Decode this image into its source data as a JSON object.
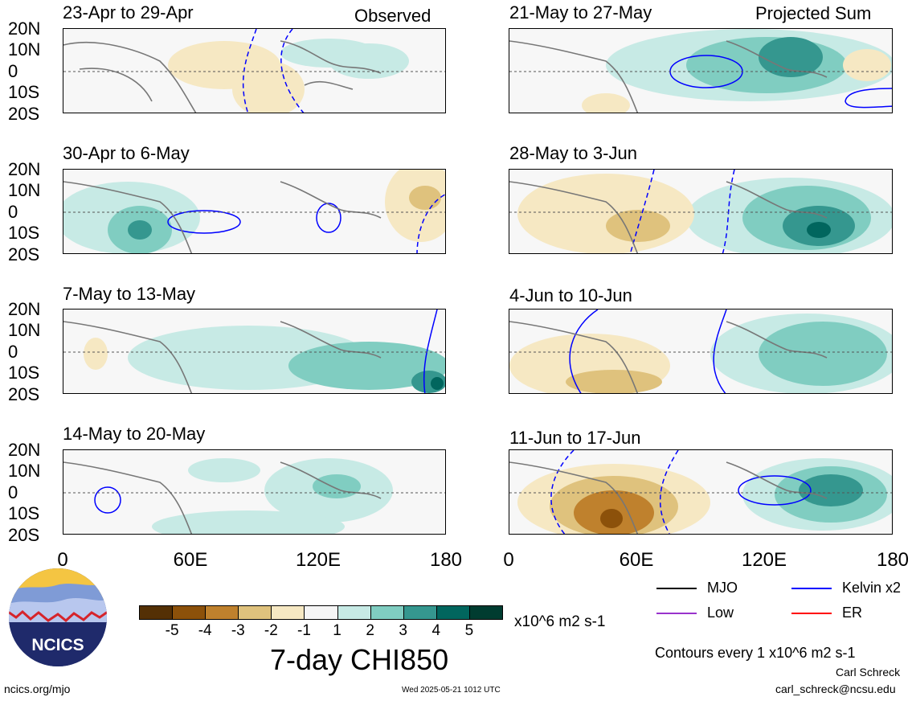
{
  "header": {
    "observed_label": "Observed",
    "projected_label": "Projected Sum"
  },
  "panels": {
    "left": [
      {
        "title": "23-Apr to 29-Apr"
      },
      {
        "title": "30-Apr to 6-May"
      },
      {
        "title": "7-May to 13-May"
      },
      {
        "title": "14-May to 20-May"
      }
    ],
    "right": [
      {
        "title": "21-May to 27-May"
      },
      {
        "title": "28-May to 3-Jun"
      },
      {
        "title": "4-Jun to 10-Jun"
      },
      {
        "title": "11-Jun to 17-Jun"
      }
    ]
  },
  "lat_labels": [
    "20N",
    "10N",
    "0",
    "10S",
    "20S"
  ],
  "lon_labels": [
    "0",
    "60E",
    "120E",
    "180"
  ],
  "colorbar": {
    "ticks": [
      "-5",
      "-4",
      "-3",
      "-2",
      "-1",
      "1",
      "2",
      "3",
      "4",
      "5"
    ],
    "colors": [
      "#543005",
      "#8c510a",
      "#bf812d",
      "#dfc27d",
      "#f6e8c3",
      "#f5f5f5",
      "#c7eae5",
      "#80cdc1",
      "#35978f",
      "#01665e",
      "#003c30"
    ],
    "units": "x10^6 m2 s-1",
    "title": "7-day CHI850"
  },
  "legend": {
    "items": [
      {
        "label": "MJO",
        "color": "#000000"
      },
      {
        "label": "Kelvin x2",
        "color": "#0000ff"
      },
      {
        "label": "Low",
        "color": "#9933cc"
      },
      {
        "label": "ER",
        "color": "#ff0000"
      }
    ],
    "contour_note": "Contours every 1 x10^6 m2 s-1"
  },
  "logo": {
    "text": "NCICS"
  },
  "footer": {
    "url": "ncics.org/mjo",
    "timestamp": "Wed 2025-05-21 1012 UTC",
    "author": "Carl Schreck",
    "email": "carl_schreck@ncsu.edu"
  }
}
